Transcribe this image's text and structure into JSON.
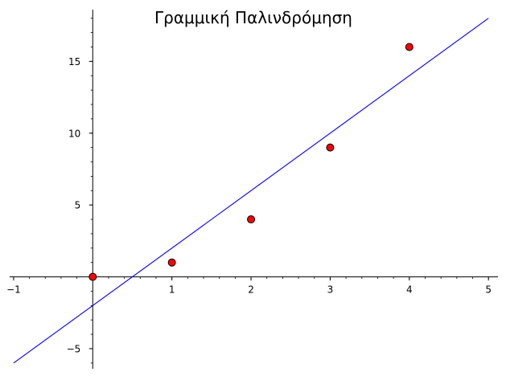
{
  "chart_data": {
    "type": "scatter",
    "title": "Γραμμική Παλινδρόμηση",
    "xlabel": "",
    "ylabel": "",
    "xlim": [
      -1.05,
      5.12
    ],
    "ylim": [
      -6.4,
      18.6
    ],
    "grid": false,
    "legend": "none",
    "x_ticks": [
      -1,
      1,
      2,
      3,
      4,
      5
    ],
    "x_tick_labels": [
      "−1",
      "1",
      "2",
      "3",
      "4",
      "5"
    ],
    "x_minor_step": 0.2,
    "y_ticks": [
      -5,
      5,
      10,
      15
    ],
    "y_tick_labels": [
      "−5",
      "5",
      "10",
      "15"
    ],
    "y_minor_step": 1,
    "series": [
      {
        "type": "scatter",
        "x": [
          0,
          1,
          2,
          3,
          4
        ],
        "y": [
          0,
          1,
          4,
          9,
          16
        ],
        "color": "#ff0000",
        "edge_color": "#000000"
      },
      {
        "type": "line",
        "x": [
          -1,
          5
        ],
        "y": [
          -6,
          18
        ],
        "color": "#0000ff"
      }
    ]
  }
}
